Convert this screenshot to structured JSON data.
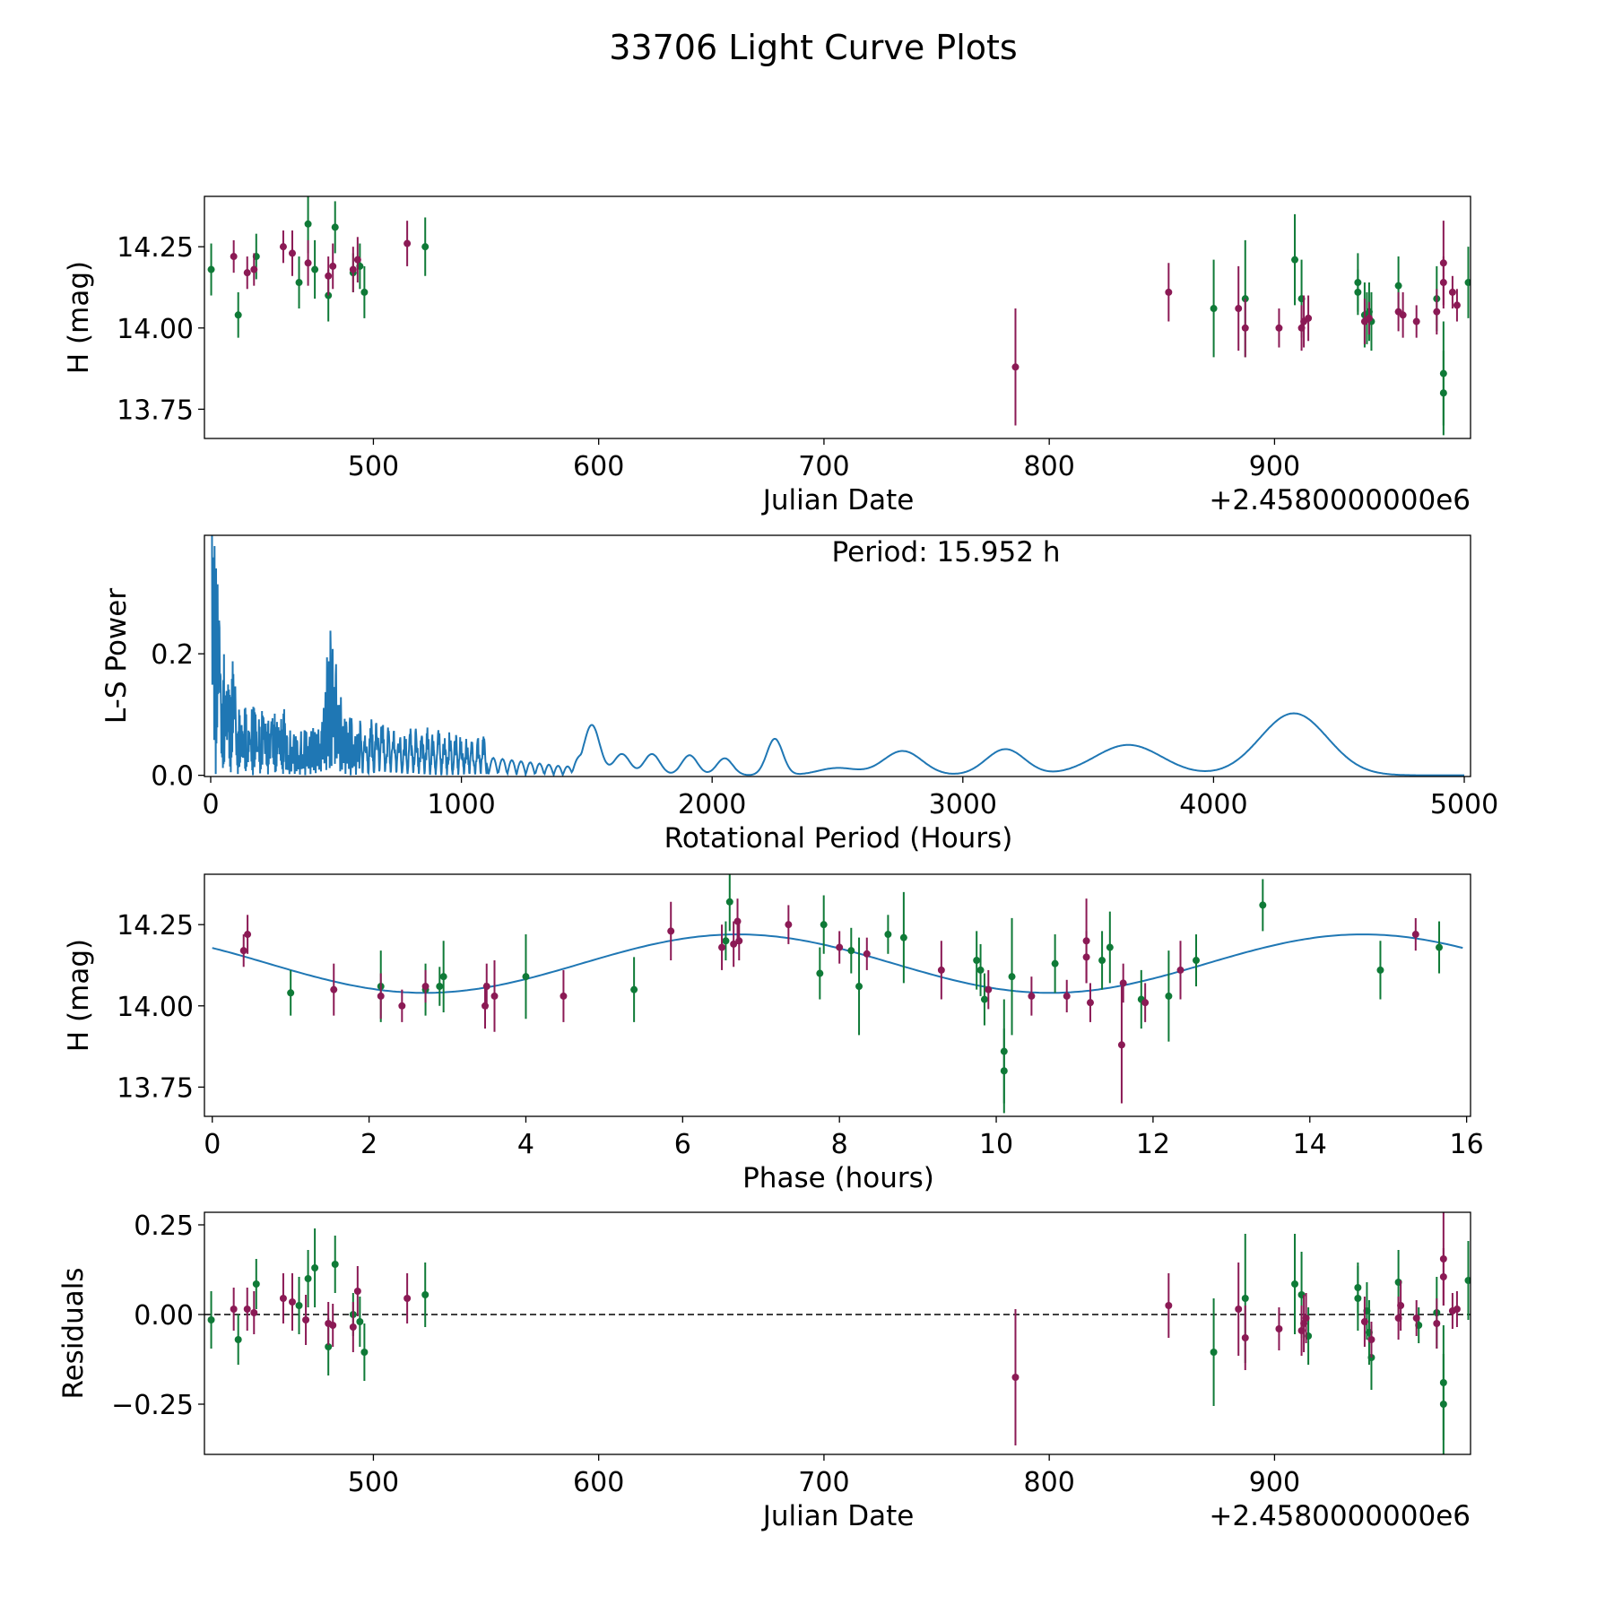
{
  "title": "33706 Light Curve Plots",
  "colors": {
    "magenta": "#8b1a55",
    "green": "#0f7a37",
    "curve": "#1f77b4"
  },
  "chart_data": [
    {
      "id": "lc",
      "type": "scatter",
      "xlabel": "Julian Date",
      "ylabel": "H (mag)",
      "offset_label": "+2.4580000000e6",
      "xlim": [
        425,
        987
      ],
      "ylim": [
        13.66,
        14.405
      ],
      "xticks": [
        500,
        600,
        700,
        800,
        900
      ],
      "yticks": [
        13.75,
        14.0,
        14.25
      ],
      "ytick_labels": [
        "13.75",
        "14.00",
        "14.25"
      ],
      "series": [
        {
          "name": "green",
          "color": "#0f7a37",
          "points": [
            [
              428,
              14.18,
              0.08
            ],
            [
              440,
              14.04,
              0.07
            ],
            [
              448,
              14.22,
              0.07
            ],
            [
              467,
              14.14,
              0.08
            ],
            [
              471,
              14.32,
              0.09
            ],
            [
              474,
              14.18,
              0.09
            ],
            [
              480,
              14.1,
              0.08
            ],
            [
              483,
              14.31,
              0.08
            ],
            [
              491,
              14.17,
              0.06
            ],
            [
              494,
              14.19,
              0.07
            ],
            [
              496,
              14.11,
              0.08
            ],
            [
              523,
              14.25,
              0.09
            ],
            [
              873,
              14.06,
              0.15
            ],
            [
              887,
              14.09,
              0.18
            ],
            [
              909,
              14.21,
              0.14
            ],
            [
              912,
              14.09,
              0.12
            ],
            [
              937,
              14.14,
              0.09
            ],
            [
              937,
              14.11,
              0.07
            ],
            [
              940,
              14.04,
              0.1
            ],
            [
              941,
              14.03,
              0.08
            ],
            [
              942,
              14.05,
              0.09
            ],
            [
              943,
              14.02,
              0.09
            ],
            [
              955,
              14.13,
              0.09
            ],
            [
              972,
              14.09,
              0.1
            ],
            [
              975,
              13.86,
              0.16
            ],
            [
              975,
              13.8,
              0.13
            ],
            [
              986,
              14.14,
              0.11
            ]
          ]
        },
        {
          "name": "magenta",
          "color": "#8b1a55",
          "points": [
            [
              438,
              14.22,
              0.05
            ],
            [
              444,
              14.17,
              0.05
            ],
            [
              447,
              14.18,
              0.05
            ],
            [
              460,
              14.25,
              0.05
            ],
            [
              464,
              14.23,
              0.07
            ],
            [
              471,
              14.2,
              0.07
            ],
            [
              480,
              14.16,
              0.06
            ],
            [
              482,
              14.19,
              0.07
            ],
            [
              491,
              14.18,
              0.07
            ],
            [
              493,
              14.21,
              0.07
            ],
            [
              515,
              14.26,
              0.07
            ],
            [
              785,
              13.88,
              0.18
            ],
            [
              853,
              14.11,
              0.09
            ],
            [
              884,
              14.06,
              0.13
            ],
            [
              887,
              14.0,
              0.09
            ],
            [
              902,
              14.0,
              0.06
            ],
            [
              912,
              14.0,
              0.07
            ],
            [
              913,
              14.02,
              0.08
            ],
            [
              915,
              14.03,
              0.07
            ],
            [
              940,
              14.02,
              0.07
            ],
            [
              942,
              14.03,
              0.05
            ],
            [
              955,
              14.05,
              0.06
            ],
            [
              957,
              14.04,
              0.07
            ],
            [
              963,
              14.02,
              0.05
            ],
            [
              972,
              14.05,
              0.07
            ],
            [
              975,
              14.2,
              0.13
            ],
            [
              975,
              14.14,
              0.08
            ],
            [
              979,
              14.11,
              0.05
            ],
            [
              981,
              14.07,
              0.05
            ]
          ]
        }
      ]
    },
    {
      "id": "ls",
      "type": "line",
      "xlabel": "Rotational Period (Hours)",
      "ylabel": "L-S Power",
      "annotation": "Period: 15.952 h",
      "xlim": [
        -25,
        5025
      ],
      "ylim": [
        -0.002,
        0.395
      ],
      "xticks": [
        0,
        1000,
        2000,
        3000,
        4000,
        5000
      ],
      "yticks": [
        0.0,
        0.2
      ],
      "ytick_labels": [
        "0.0",
        "0.2"
      ],
      "peaks": [
        [
          1520,
          0.083
        ],
        [
          1640,
          0.035
        ],
        [
          1760,
          0.035
        ],
        [
          1910,
          0.033
        ],
        [
          2050,
          0.028
        ],
        [
          2250,
          0.06
        ],
        [
          2500,
          0.012
        ],
        [
          2760,
          0.04
        ],
        [
          3170,
          0.043
        ],
        [
          3660,
          0.05
        ],
        [
          4320,
          0.102
        ]
      ]
    },
    {
      "id": "phase",
      "type": "scatter",
      "xlabel": "Phase (hours)",
      "ylabel": "H (mag)",
      "xlim": [
        -0.1,
        16.05
      ],
      "ylim": [
        13.66,
        14.405
      ],
      "xticks": [
        0,
        2,
        4,
        6,
        8,
        10,
        12,
        14,
        16
      ],
      "yticks": [
        13.75,
        14.0,
        14.25
      ],
      "ytick_labels": [
        "13.75",
        "14.00",
        "14.25"
      ],
      "model": {
        "mean": 14.13,
        "amplitude": 0.09,
        "period": 7.976,
        "peak_phase": 6.7
      },
      "series": [
        {
          "name": "green",
          "color": "#0f7a37",
          "points": [
            [
              1.0,
              14.04,
              0.07
            ],
            [
              2.15,
              14.06,
              0.11
            ],
            [
              2.72,
              14.05,
              0.08
            ],
            [
              2.9,
              14.06,
              0.06
            ],
            [
              2.95,
              14.09,
              0.11
            ],
            [
              4.0,
              14.09,
              0.13
            ],
            [
              5.38,
              14.05,
              0.1
            ],
            [
              6.55,
              14.2,
              0.06
            ],
            [
              6.6,
              14.32,
              0.09
            ],
            [
              7.75,
              14.1,
              0.08
            ],
            [
              7.8,
              14.25,
              0.09
            ],
            [
              8.15,
              14.17,
              0.07
            ],
            [
              8.25,
              14.06,
              0.15
            ],
            [
              8.62,
              14.22,
              0.06
            ],
            [
              8.82,
              14.21,
              0.14
            ],
            [
              9.75,
              14.14,
              0.09
            ],
            [
              9.8,
              14.11,
              0.08
            ],
            [
              9.85,
              14.02,
              0.08
            ],
            [
              10.1,
              13.86,
              0.16
            ],
            [
              10.1,
              13.8,
              0.13
            ],
            [
              10.2,
              14.09,
              0.18
            ],
            [
              10.75,
              14.13,
              0.09
            ],
            [
              11.35,
              14.14,
              0.09
            ],
            [
              11.45,
              14.18,
              0.11
            ],
            [
              11.85,
              14.02,
              0.09
            ],
            [
              12.2,
              14.03,
              0.14
            ],
            [
              12.55,
              14.14,
              0.08
            ],
            [
              13.4,
              14.31,
              0.08
            ],
            [
              14.9,
              14.11,
              0.09
            ],
            [
              15.65,
              14.18,
              0.08
            ]
          ]
        },
        {
          "name": "magenta",
          "color": "#8b1a55",
          "points": [
            [
              0.4,
              14.17,
              0.05
            ],
            [
              0.45,
              14.22,
              0.06
            ],
            [
              1.55,
              14.05,
              0.08
            ],
            [
              2.15,
              14.03,
              0.07
            ],
            [
              2.42,
              14.0,
              0.05
            ],
            [
              2.72,
              14.06,
              0.05
            ],
            [
              3.48,
              14.0,
              0.07
            ],
            [
              3.5,
              14.06,
              0.07
            ],
            [
              3.6,
              14.03,
              0.11
            ],
            [
              4.48,
              14.03,
              0.08
            ],
            [
              5.85,
              14.23,
              0.09
            ],
            [
              6.5,
              14.18,
              0.07
            ],
            [
              6.65,
              14.19,
              0.07
            ],
            [
              6.7,
              14.26,
              0.07
            ],
            [
              6.72,
              14.2,
              0.06
            ],
            [
              7.35,
              14.25,
              0.06
            ],
            [
              8.0,
              14.18,
              0.05
            ],
            [
              8.35,
              14.16,
              0.05
            ],
            [
              9.3,
              14.11,
              0.09
            ],
            [
              9.9,
              14.05,
              0.06
            ],
            [
              10.45,
              14.03,
              0.06
            ],
            [
              10.9,
              14.03,
              0.05
            ],
            [
              11.15,
              14.2,
              0.13
            ],
            [
              11.15,
              14.15,
              0.08
            ],
            [
              11.2,
              14.01,
              0.06
            ],
            [
              11.6,
              13.88,
              0.18
            ],
            [
              11.62,
              14.07,
              0.06
            ],
            [
              11.9,
              14.01,
              0.06
            ],
            [
              12.35,
              14.11,
              0.09
            ],
            [
              15.35,
              14.22,
              0.05
            ]
          ]
        }
      ]
    },
    {
      "id": "resid",
      "type": "scatter",
      "xlabel": "Julian Date",
      "ylabel": "Residuals",
      "offset_label": "+2.4580000000e6",
      "xlim": [
        425,
        987
      ],
      "ylim": [
        -0.39,
        0.285
      ],
      "xticks": [
        500,
        600,
        700,
        800,
        900
      ],
      "yticks": [
        -0.25,
        0.0,
        0.25
      ],
      "ytick_labels": [
        "−0.25",
        "0.00",
        "0.25"
      ],
      "zero_line": true,
      "series": [
        {
          "name": "green",
          "color": "#0f7a37",
          "points": [
            [
              428,
              -0.015,
              0.08
            ],
            [
              440,
              -0.07,
              0.07
            ],
            [
              448,
              0.085,
              0.07
            ],
            [
              467,
              0.025,
              0.08
            ],
            [
              471,
              0.1,
              0.08
            ],
            [
              474,
              0.13,
              0.11
            ],
            [
              480,
              -0.09,
              0.08
            ],
            [
              483,
              0.14,
              0.08
            ],
            [
              491,
              0.0,
              0.06
            ],
            [
              494,
              -0.02,
              0.07
            ],
            [
              496,
              -0.105,
              0.08
            ],
            [
              523,
              0.055,
              0.09
            ],
            [
              873,
              -0.105,
              0.15
            ],
            [
              887,
              0.045,
              0.18
            ],
            [
              909,
              0.085,
              0.14
            ],
            [
              912,
              0.055,
              0.12
            ],
            [
              915,
              -0.06,
              0.08
            ],
            [
              937,
              0.045,
              0.09
            ],
            [
              937,
              0.075,
              0.07
            ],
            [
              941,
              0.01,
              0.08
            ],
            [
              942,
              -0.05,
              0.09
            ],
            [
              943,
              -0.12,
              0.09
            ],
            [
              955,
              0.09,
              0.09
            ],
            [
              964,
              -0.03,
              0.05
            ],
            [
              972,
              0.005,
              0.1
            ],
            [
              975,
              -0.19,
              0.16
            ],
            [
              975,
              -0.25,
              0.14
            ],
            [
              986,
              0.095,
              0.11
            ]
          ]
        },
        {
          "name": "magenta",
          "color": "#8b1a55",
          "points": [
            [
              438,
              0.015,
              0.06
            ],
            [
              444,
              0.015,
              0.06
            ],
            [
              447,
              0.005,
              0.06
            ],
            [
              460,
              0.045,
              0.07
            ],
            [
              464,
              0.035,
              0.08
            ],
            [
              470,
              -0.015,
              0.07
            ],
            [
              480,
              -0.025,
              0.06
            ],
            [
              482,
              -0.03,
              0.06
            ],
            [
              491,
              -0.035,
              0.07
            ],
            [
              493,
              0.065,
              0.07
            ],
            [
              515,
              0.045,
              0.07
            ],
            [
              785,
              -0.175,
              0.19
            ],
            [
              853,
              0.025,
              0.09
            ],
            [
              884,
              0.015,
              0.13
            ],
            [
              887,
              -0.065,
              0.09
            ],
            [
              902,
              -0.04,
              0.06
            ],
            [
              912,
              -0.045,
              0.07
            ],
            [
              913,
              -0.025,
              0.08
            ],
            [
              914,
              -0.01,
              0.07
            ],
            [
              940,
              -0.02,
              0.07
            ],
            [
              943,
              -0.07,
              0.05
            ],
            [
              955,
              -0.01,
              0.06
            ],
            [
              956,
              0.025,
              0.07
            ],
            [
              963,
              -0.01,
              0.05
            ],
            [
              972,
              -0.025,
              0.07
            ],
            [
              975,
              0.155,
              0.13
            ],
            [
              975,
              0.105,
              0.08
            ],
            [
              979,
              0.01,
              0.05
            ],
            [
              981,
              0.015,
              0.05
            ]
          ]
        }
      ]
    }
  ]
}
